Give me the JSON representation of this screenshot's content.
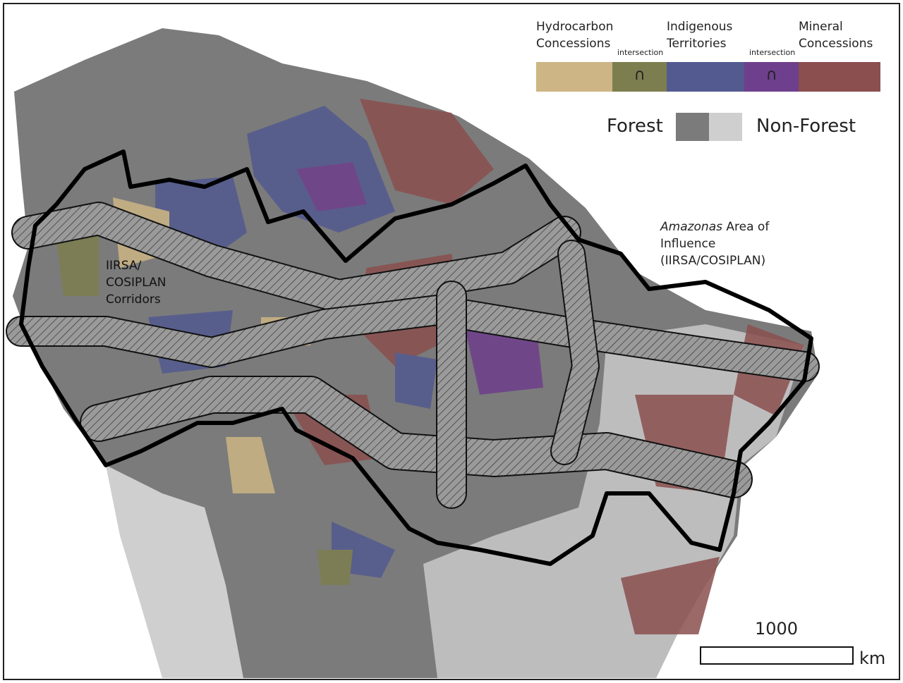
{
  "legend": {
    "segments": [
      {
        "color": "#cdb585",
        "heading": "Hydrocarbon Concessions"
      },
      {
        "color": "#7d7e4f",
        "caption": "intersection",
        "symbol": "∩"
      },
      {
        "color": "#535a8f",
        "heading": "Indigenous Territories"
      },
      {
        "color": "#6e3f8c",
        "caption": "intersection",
        "symbol": "∩"
      },
      {
        "color": "#8b4f4f",
        "heading": "Mineral Concessions"
      }
    ],
    "cover": [
      {
        "label": "Forest",
        "color": "#7b7b7b"
      },
      {
        "label": "Non-Forest",
        "color": "#cfcfcf"
      }
    ]
  },
  "labels": {
    "area_italic": "Amazonas",
    "area_rest": "Area of Influence (IIRSA/COSIPLAN)",
    "corridors": "IIRSA/ COSIPLAN Corridors"
  },
  "scale_bar": {
    "value": "1000",
    "unit": "km"
  }
}
